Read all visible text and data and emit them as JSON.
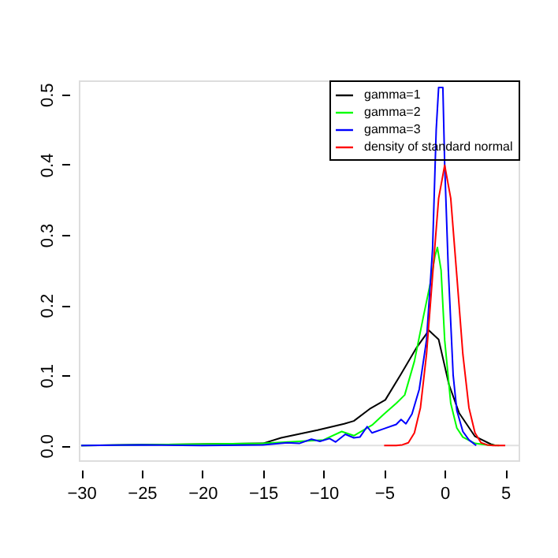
{
  "chart_data": {
    "type": "line",
    "xlim": [
      -30.2,
      6.1
    ],
    "ylim": [
      -0.021,
      0.52
    ],
    "xticks": [
      -30,
      -25,
      -20,
      -15,
      -10,
      -5,
      0,
      5
    ],
    "yticks": [
      {
        "value": 0,
        "label": "0.0"
      },
      {
        "value": 0.1,
        "label": "0.1"
      },
      {
        "value": 0.2,
        "label": "0.2"
      },
      {
        "value": 0.3,
        "label": "0.3"
      },
      {
        "value": 0.4,
        "label": "0.4"
      },
      {
        "value": 0.5,
        "label": "0.5"
      }
    ],
    "grid": false,
    "legend": "top right",
    "line_style": "solid",
    "marker": "none",
    "ref_lines": [
      {
        "axis": "y",
        "value": 0,
        "label": null,
        "color": "#e0e0e0"
      }
    ],
    "series": [
      {
        "name": "gamma=1",
        "color": "#000000",
        "x": [
          -30,
          -15,
          -13.5,
          -10.5,
          -8.3,
          -7.5,
          -6.2,
          -4.9,
          -3.6,
          -2.3,
          -1.3,
          -0.5,
          0.35,
          1.2,
          2.5,
          3.8,
          4.2
        ],
        "values": [
          0,
          0.003,
          0.011,
          0.022,
          0.031,
          0.035,
          0.052,
          0.065,
          0.102,
          0.14,
          0.164,
          0.151,
          0.087,
          0.046,
          0.013,
          0.002,
          0
        ]
      },
      {
        "name": "gamma=2",
        "color": "#00ff00",
        "x": [
          -30,
          -20,
          -15,
          -12,
          -10,
          -8.5,
          -7.5,
          -6,
          -5,
          -4,
          -3.3,
          -2.5,
          -1.8,
          -1.2,
          -0.8,
          -0.6,
          -0.3,
          0,
          0.5,
          1,
          1.5,
          2.5,
          3.5,
          4.5
        ],
        "values": [
          0,
          0.002,
          0.003,
          0.006,
          0.008,
          0.02,
          0.014,
          0.029,
          0.045,
          0.06,
          0.072,
          0.12,
          0.18,
          0.23,
          0.27,
          0.282,
          0.25,
          0.15,
          0.06,
          0.025,
          0.012,
          0.003,
          0.001,
          0
        ]
      },
      {
        "name": "gamma=3",
        "color": "#0000ff",
        "x": [
          -30,
          -25,
          -20,
          -15,
          -13,
          -12,
          -11,
          -10.3,
          -9.5,
          -9,
          -8.2,
          -7.5,
          -7,
          -6.4,
          -6,
          -5,
          -4,
          -3.6,
          -3.2,
          -2.7,
          -2.1,
          -1.5,
          -1,
          -0.7,
          -0.5,
          -0.15,
          0,
          0.3,
          0.7,
          1,
          1.5,
          2,
          2.6
        ],
        "values": [
          0,
          0.001,
          0,
          0.001,
          0.004,
          0.003,
          0.009,
          0.006,
          0.01,
          0.005,
          0.016,
          0.011,
          0.012,
          0.027,
          0.018,
          0.024,
          0.03,
          0.037,
          0.031,
          0.045,
          0.08,
          0.15,
          0.28,
          0.45,
          0.51,
          0.51,
          0.4,
          0.25,
          0.1,
          0.05,
          0.02,
          0.008,
          0
        ]
      },
      {
        "name": "density of standard normal",
        "color": "#ff0000",
        "x": [
          -5,
          -4,
          -3.5,
          -3,
          -2.5,
          -2,
          -1.5,
          -1,
          -0.5,
          0,
          0.5,
          1,
          1.5,
          2,
          2.5,
          3,
          3.5,
          4,
          5
        ],
        "values": [
          0,
          0,
          0.001,
          0.004,
          0.018,
          0.054,
          0.13,
          0.242,
          0.352,
          0.399,
          0.352,
          0.242,
          0.13,
          0.054,
          0.018,
          0.004,
          0.001,
          0,
          0
        ]
      }
    ]
  }
}
